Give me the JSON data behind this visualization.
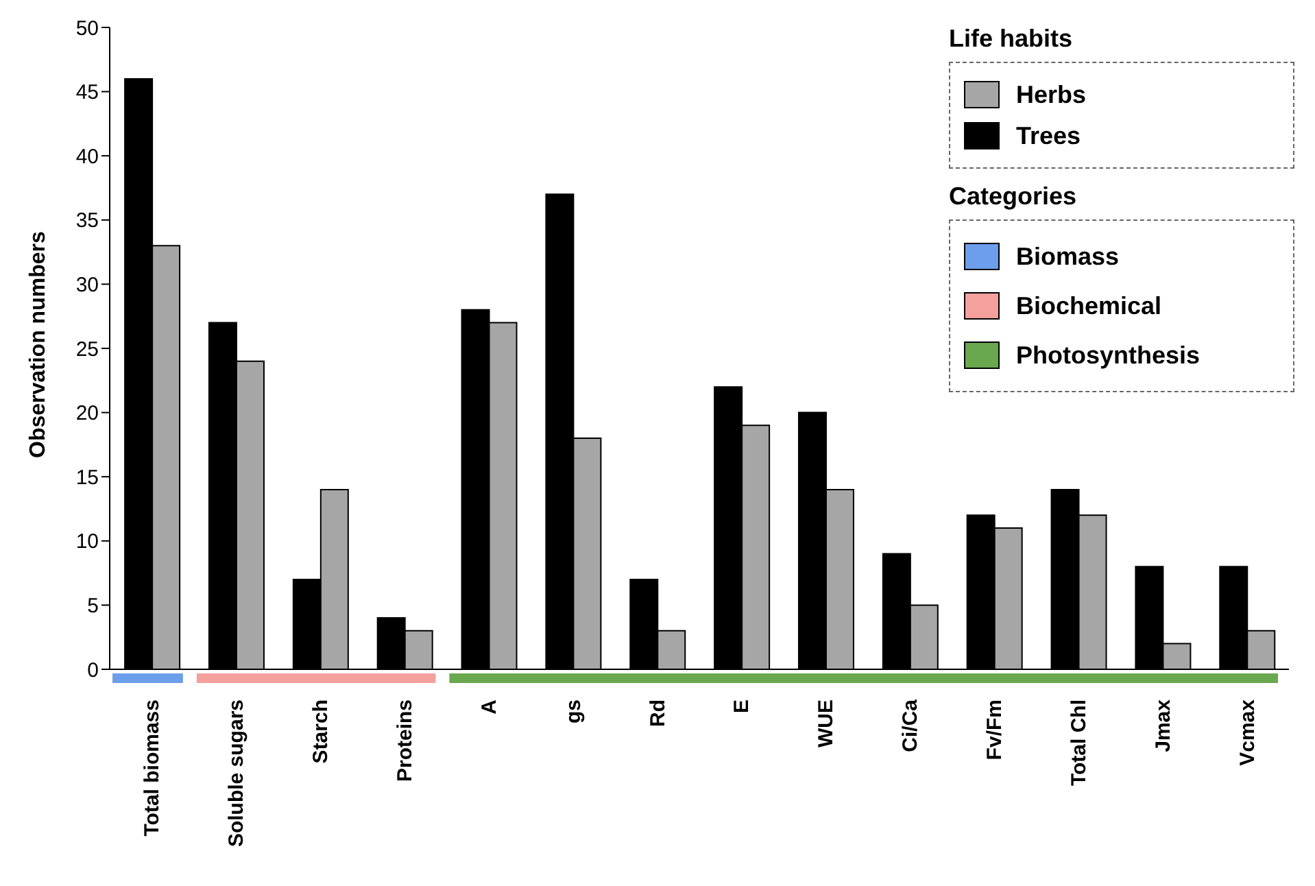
{
  "chart_data": {
    "type": "bar",
    "ylabel": "Observation numbers",
    "legend_title": "Life habits",
    "annotations": [
      "Categories",
      "Biomass",
      "Biochemical",
      "Photosynthesis"
    ],
    "categories": [
      "Total biomass",
      "Soluble sugars",
      "Starch",
      "Proteins",
      "A",
      "gs",
      "Rd",
      "E",
      "WUE",
      "Ci/Ca",
      "Fv/Fm",
      "Total Chl",
      "Jmax",
      "Vcmax"
    ],
    "series": [
      {
        "name": "Trees",
        "color": "#000000",
        "values": [
          46,
          27,
          7,
          4,
          28,
          37,
          7,
          22,
          20,
          9,
          12,
          14,
          8,
          8
        ]
      },
      {
        "name": "Herbs",
        "color": "#a6a6a6",
        "values": [
          33,
          24,
          14,
          3,
          27,
          18,
          3,
          19,
          14,
          5,
          11,
          12,
          2,
          3
        ]
      }
    ],
    "ylim": [
      0,
      50
    ],
    "yticks": [
      0,
      5,
      10,
      15,
      20,
      25,
      30,
      35,
      40,
      45,
      50
    ],
    "grid": false,
    "legend": "top right"
  }
}
